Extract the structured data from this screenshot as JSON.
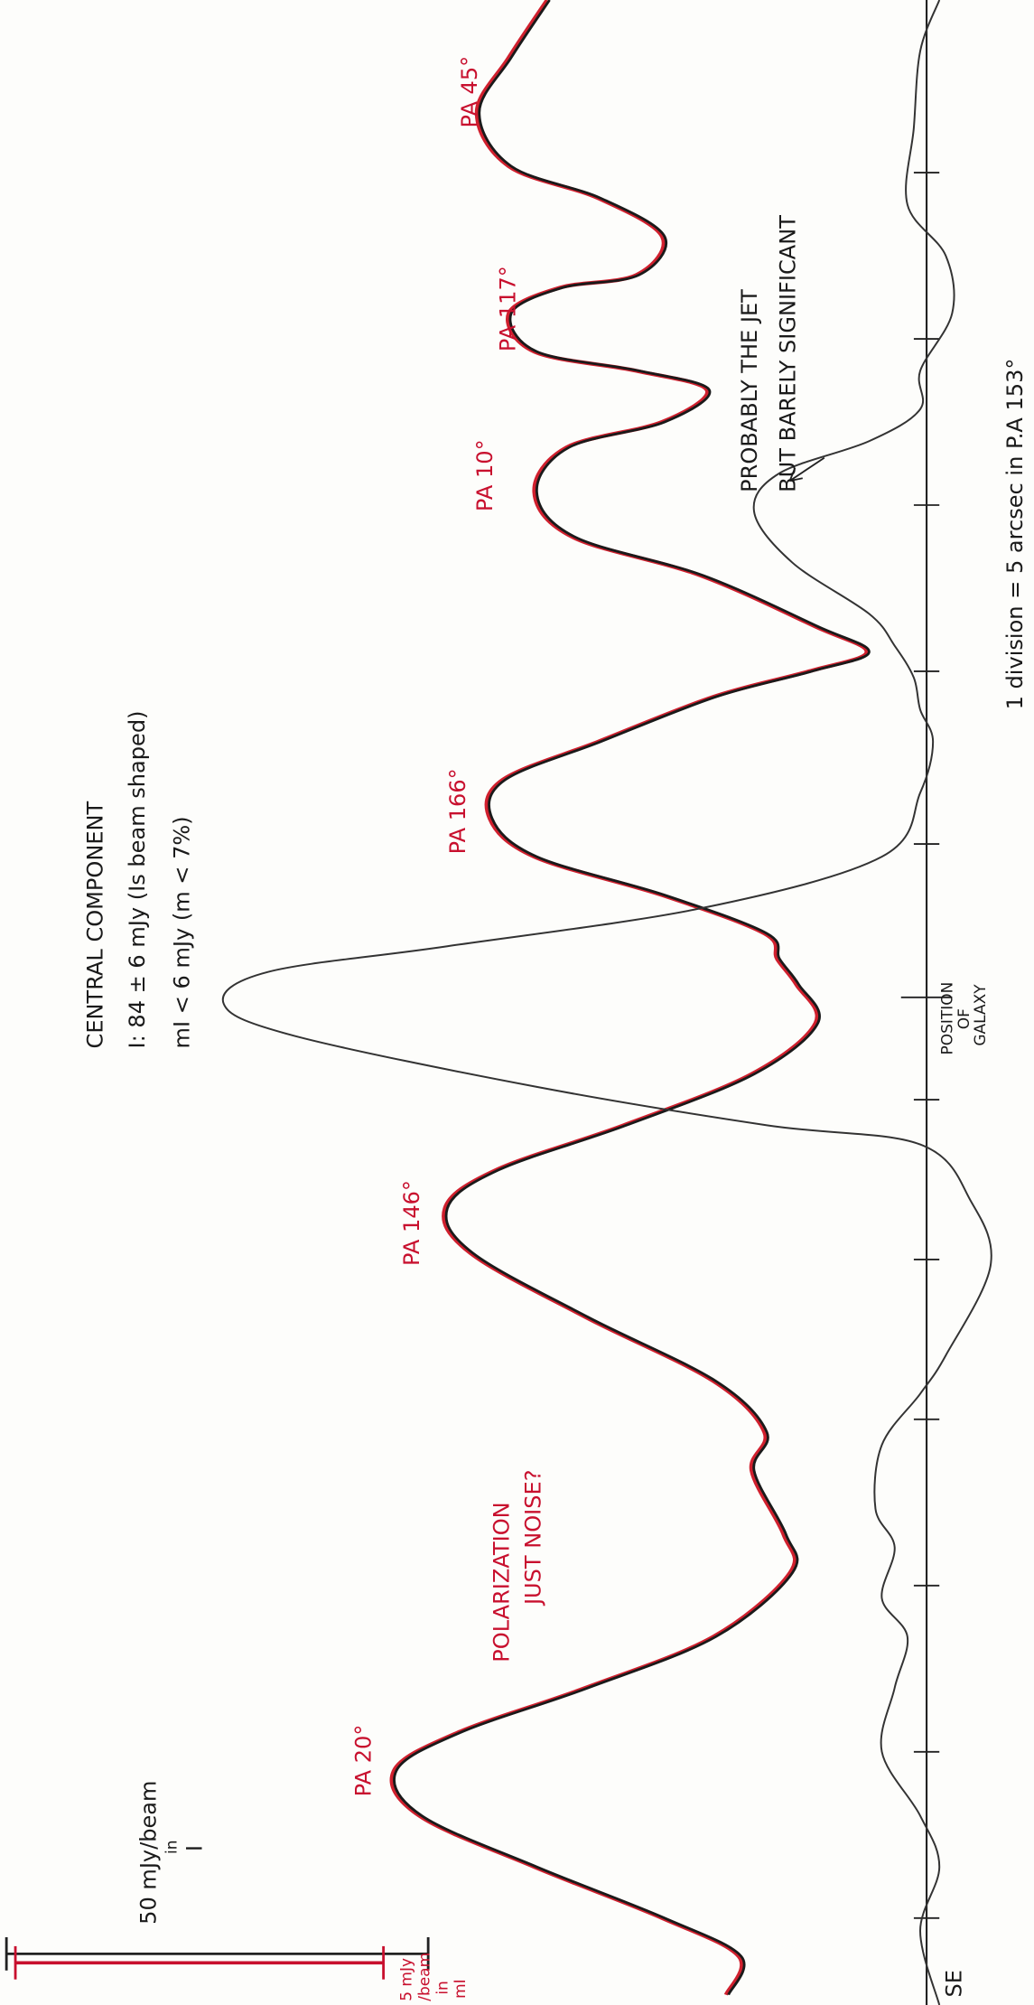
{
  "central_component": {
    "title": "CENTRAL COMPONENT",
    "intensity": "I: 84 ± 6 mJy (Is beam shaped)",
    "polarized": "mI < 6 mJy (m < 7%)"
  },
  "position_angles": [
    "PA 20°",
    "PA 146°",
    "PA 166°",
    "PA 10°",
    "PA 117°",
    "PA 45°"
  ],
  "notes": {
    "noise": [
      "POLARIZATION",
      "JUST NOISE?"
    ],
    "jet": [
      "PROBABLY THE JET",
      "BUT BARELY SIGNIFICANT"
    ],
    "galaxy": [
      "POSITION",
      "OF",
      "GALAXY"
    ],
    "scale": "1 division = 5 arcsec in P.A 153°",
    "direction": "SE"
  },
  "scale_bars": {
    "intensity": [
      "50 mJy/beam",
      "in",
      "I"
    ],
    "polarized": [
      "5 mJy",
      "/beam",
      "in",
      "mI"
    ]
  }
}
